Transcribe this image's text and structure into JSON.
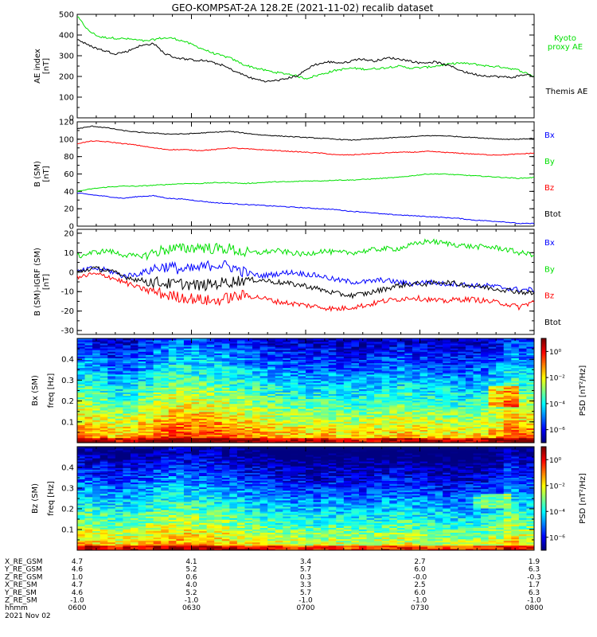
{
  "chart_data": [
    {
      "type": "line",
      "title": "GEO-KOMPSAT-2A 128.2E (2021-11-02) recalib dataset",
      "ylabel_lines": [
        "AE index",
        "[nT]"
      ],
      "ylim": [
        0,
        500
      ],
      "yticks": [
        "0",
        "100",
        "200",
        "300",
        "400",
        "500"
      ],
      "series": [
        {
          "name": "Kyoto proxy AE",
          "legend_lines": [
            "Kyoto",
            "proxy AE"
          ],
          "color": "#00e000",
          "x": [
            0,
            3,
            6,
            10,
            14,
            18,
            22,
            25,
            28,
            32,
            36,
            40,
            44,
            48,
            52,
            56,
            60,
            64,
            68,
            72,
            76,
            80,
            84,
            88,
            92,
            96,
            100,
            104,
            108,
            112,
            116,
            120
          ],
          "values": [
            490,
            420,
            390,
            385,
            380,
            370,
            385,
            385,
            370,
            340,
            310,
            290,
            255,
            235,
            220,
            210,
            190,
            210,
            230,
            240,
            235,
            240,
            250,
            240,
            245,
            255,
            265,
            260,
            250,
            245,
            230,
            200
          ]
        },
        {
          "name": "Themis AE",
          "legend_lines": [
            "Themis AE"
          ],
          "color": "#000000",
          "x": [
            0,
            3,
            6,
            10,
            13,
            16,
            20,
            23,
            26,
            30,
            34,
            38,
            42,
            46,
            50,
            54,
            58,
            62,
            66,
            70,
            74,
            78,
            82,
            86,
            90,
            94,
            98,
            102,
            106,
            110,
            114,
            118,
            120
          ],
          "values": [
            380,
            350,
            330,
            310,
            320,
            345,
            360,
            310,
            290,
            280,
            275,
            255,
            220,
            190,
            175,
            185,
            205,
            255,
            270,
            265,
            285,
            275,
            290,
            280,
            265,
            270,
            250,
            220,
            205,
            200,
            195,
            210,
            200
          ]
        }
      ]
    },
    {
      "type": "line",
      "ylabel_lines": [
        "B (SM)",
        "[nT]"
      ],
      "ylim": [
        0,
        120
      ],
      "yticks": [
        "0",
        "20",
        "40",
        "60",
        "80",
        "100",
        "120"
      ],
      "series": [
        {
          "name": "Bx",
          "color": "#0000ff",
          "x": [
            0,
            4,
            8,
            12,
            16,
            20,
            24,
            28,
            32,
            36,
            40,
            44,
            48,
            52,
            56,
            60,
            64,
            68,
            72,
            76,
            80,
            84,
            88,
            92,
            96,
            100,
            104,
            108,
            112,
            116,
            120
          ],
          "values": [
            38,
            36,
            34,
            32,
            34,
            35,
            32,
            31,
            29,
            27,
            26,
            25,
            24,
            23,
            22,
            21,
            20,
            19,
            17,
            16,
            14,
            13,
            12,
            11,
            10,
            9,
            7,
            6,
            5,
            3,
            3
          ]
        },
        {
          "name": "By",
          "color": "#00e000",
          "x": [
            0,
            4,
            8,
            12,
            16,
            20,
            24,
            28,
            32,
            36,
            40,
            44,
            48,
            52,
            56,
            60,
            64,
            68,
            72,
            76,
            80,
            84,
            88,
            92,
            96,
            100,
            104,
            108,
            112,
            116,
            120
          ],
          "values": [
            40,
            43,
            45,
            46,
            46,
            47,
            48,
            49,
            49,
            50,
            50,
            49,
            50,
            51,
            51,
            52,
            52,
            53,
            53,
            54,
            55,
            56,
            58,
            60,
            60,
            59,
            58,
            57,
            56,
            55,
            56
          ]
        },
        {
          "name": "Bz",
          "color": "#ff0000",
          "x": [
            0,
            4,
            8,
            12,
            16,
            20,
            24,
            28,
            32,
            36,
            40,
            44,
            48,
            52,
            56,
            60,
            64,
            68,
            72,
            76,
            80,
            84,
            88,
            92,
            96,
            100,
            104,
            108,
            112,
            116,
            120
          ],
          "values": [
            95,
            98,
            97,
            95,
            93,
            90,
            88,
            88,
            87,
            88,
            90,
            89,
            88,
            87,
            86,
            85,
            84,
            82,
            82,
            83,
            84,
            85,
            85,
            86,
            85,
            84,
            83,
            82,
            82,
            83,
            84
          ]
        },
        {
          "name": "Btot",
          "color": "#000000",
          "x": [
            0,
            4,
            8,
            12,
            16,
            20,
            24,
            28,
            32,
            36,
            40,
            44,
            48,
            52,
            56,
            60,
            64,
            68,
            72,
            76,
            80,
            84,
            88,
            92,
            96,
            100,
            104,
            108,
            112,
            116,
            120
          ],
          "values": [
            112,
            115,
            113,
            110,
            108,
            107,
            106,
            106,
            107,
            108,
            109,
            107,
            105,
            104,
            103,
            102,
            101,
            100,
            99,
            100,
            101,
            102,
            103,
            104,
            104,
            103,
            102,
            101,
            100,
            100,
            101
          ]
        }
      ]
    },
    {
      "type": "line",
      "ylabel_lines": [
        "B (SM)-IGRF (SM)",
        "[nT]"
      ],
      "ylim": [
        -32,
        22
      ],
      "yticks": [
        "-30",
        "-20",
        "-10",
        "0",
        "10",
        "20"
      ],
      "series": [
        {
          "name": "Bx",
          "color": "#0000ff",
          "x": [
            0,
            4,
            8,
            12,
            16,
            20,
            24,
            28,
            32,
            36,
            40,
            44,
            48,
            52,
            56,
            60,
            64,
            68,
            72,
            76,
            80,
            84,
            88,
            92,
            96,
            100,
            104,
            108,
            112,
            116,
            120
          ],
          "values": [
            0,
            2,
            1,
            -2,
            -1,
            2,
            3,
            1,
            2,
            4,
            3,
            0,
            -2,
            -1,
            0,
            -1,
            -2,
            -4,
            -5,
            -5,
            -4,
            -5,
            -6,
            -5,
            -6,
            -6,
            -7,
            -7,
            -8,
            -9,
            -9
          ]
        },
        {
          "name": "By",
          "color": "#00e000",
          "x": [
            0,
            4,
            8,
            12,
            16,
            20,
            24,
            28,
            32,
            36,
            40,
            44,
            48,
            52,
            56,
            60,
            64,
            68,
            72,
            76,
            80,
            84,
            88,
            92,
            96,
            100,
            104,
            108,
            112,
            116,
            120
          ],
          "values": [
            8,
            10,
            11,
            9,
            8,
            10,
            12,
            12,
            13,
            12,
            12,
            10,
            10,
            11,
            10,
            9,
            11,
            10,
            10,
            11,
            12,
            12,
            14,
            16,
            15,
            14,
            13,
            13,
            12,
            10,
            9
          ]
        },
        {
          "name": "Bz",
          "color": "#ff0000",
          "x": [
            0,
            4,
            8,
            12,
            16,
            20,
            24,
            28,
            32,
            36,
            40,
            44,
            48,
            52,
            56,
            60,
            64,
            68,
            72,
            76,
            80,
            84,
            88,
            92,
            96,
            100,
            104,
            108,
            112,
            116,
            120
          ],
          "values": [
            -3,
            -1,
            -2,
            -5,
            -8,
            -10,
            -12,
            -13,
            -14,
            -15,
            -13,
            -12,
            -13,
            -15,
            -16,
            -17,
            -18,
            -19,
            -18,
            -17,
            -15,
            -14,
            -13,
            -14,
            -15,
            -14,
            -14,
            -15,
            -16,
            -18,
            -15
          ]
        },
        {
          "name": "Btot",
          "color": "#000000",
          "x": [
            0,
            4,
            8,
            12,
            16,
            20,
            24,
            28,
            32,
            36,
            40,
            44,
            48,
            52,
            56,
            60,
            64,
            68,
            72,
            76,
            80,
            84,
            88,
            92,
            96,
            100,
            104,
            108,
            112,
            116,
            120
          ],
          "values": [
            0,
            2,
            1,
            -2,
            -4,
            -5,
            -6,
            -6,
            -7,
            -6,
            -5,
            -4,
            -4,
            -5,
            -6,
            -7,
            -9,
            -11,
            -12,
            -11,
            -9,
            -7,
            -6,
            -6,
            -5,
            -6,
            -7,
            -8,
            -9,
            -10,
            -11
          ]
        }
      ]
    },
    {
      "type": "heatmap",
      "ylabel_lines": [
        "Bx (SM)",
        "freq [Hz]"
      ],
      "ylim": [
        0,
        0.5
      ],
      "yticks": [
        "0.1",
        "0.2",
        "0.3",
        "0.4"
      ],
      "colorbar_label": "PSD [nT²/Hz]",
      "colorbar_ticks": [
        "10⁰",
        "10⁻²",
        "10⁻⁴",
        "10⁻⁶"
      ],
      "colorbar_tick_values": [
        1,
        0.01,
        0.0001,
        1e-06
      ],
      "colorbar_range": [
        1e-07,
        10
      ],
      "value_unit_note": "log10 PSD levels (nT^2/Hz) per time column (60 columns, 06:00-08:00) and frequency row (low to high)",
      "time_profile": [
        -1.8,
        -2.1,
        -2.5,
        -2.4,
        -2.0,
        -1.5,
        -1.2,
        -1.3,
        -1.4,
        -1.5,
        -1.8,
        -2.0,
        -2.2,
        -2.4,
        -2.5,
        -2.6,
        -2.5,
        -2.6,
        -2.7,
        -2.5,
        -2.4,
        -2.3,
        -2.5,
        -2.6,
        -2.7,
        -2.8,
        -2.6,
        -2.2,
        -1.6,
        -1.8
      ],
      "freq_decay": 5.5
    },
    {
      "type": "heatmap",
      "ylabel_lines": [
        "Bz (SM)",
        "freq [Hz]"
      ],
      "ylim": [
        0,
        0.5
      ],
      "yticks": [
        "0.1",
        "0.2",
        "0.3",
        "0.4"
      ],
      "colorbar_label": "PSD [nT²/Hz]",
      "colorbar_ticks": [
        "10⁰",
        "10⁻²",
        "10⁻⁴",
        "10⁻⁶"
      ],
      "colorbar_tick_values": [
        1,
        0.01,
        0.0001,
        1e-06
      ],
      "colorbar_range": [
        1e-07,
        10
      ],
      "value_unit_note": "log10 PSD levels (nT^2/Hz) per time column",
      "time_profile": [
        -2.4,
        -2.6,
        -2.8,
        -2.7,
        -2.5,
        -2.2,
        -2.0,
        -2.1,
        -2.3,
        -2.4,
        -2.6,
        -2.8,
        -3.0,
        -3.1,
        -3.2,
        -3.3,
        -3.2,
        -3.3,
        -3.3,
        -3.2,
        -3.1,
        -3.0,
        -3.2,
        -3.3,
        -3.4,
        -3.4,
        -3.3,
        -3.0,
        -2.4,
        -2.8
      ],
      "freq_decay": 6.0
    }
  ],
  "ephemeris": {
    "rows": [
      {
        "label": "X_RE_GSM",
        "values": [
          "4.7",
          "4.1",
          "3.4",
          "2.7",
          "1.9"
        ]
      },
      {
        "label": "Y_RE_GSM",
        "values": [
          "4.6",
          "5.2",
          "5.7",
          "6.0",
          "6.3"
        ]
      },
      {
        "label": "Z_RE_GSM",
        "values": [
          "1.0",
          "0.6",
          "0.3",
          "-0.0",
          "-0.3"
        ]
      },
      {
        "label": "X_RE_SM",
        "values": [
          "4.7",
          "4.0",
          "3.3",
          "2.5",
          "1.7"
        ]
      },
      {
        "label": "Y_RE_SM",
        "values": [
          "4.6",
          "5.2",
          "5.7",
          "6.0",
          "6.3"
        ]
      },
      {
        "label": "Z_RE_SM",
        "values": [
          "-1.0",
          "-1.0",
          "-1.0",
          "-1.0",
          "-1.0"
        ]
      },
      {
        "label": "hhmm",
        "values": [
          "0600",
          "0630",
          "0700",
          "0730",
          "0800"
        ]
      }
    ],
    "date": "2021 Nov 02"
  },
  "colors": {
    "bx": "#0000ff",
    "by": "#00e000",
    "bz": "#ff0000",
    "btot": "#000000"
  }
}
